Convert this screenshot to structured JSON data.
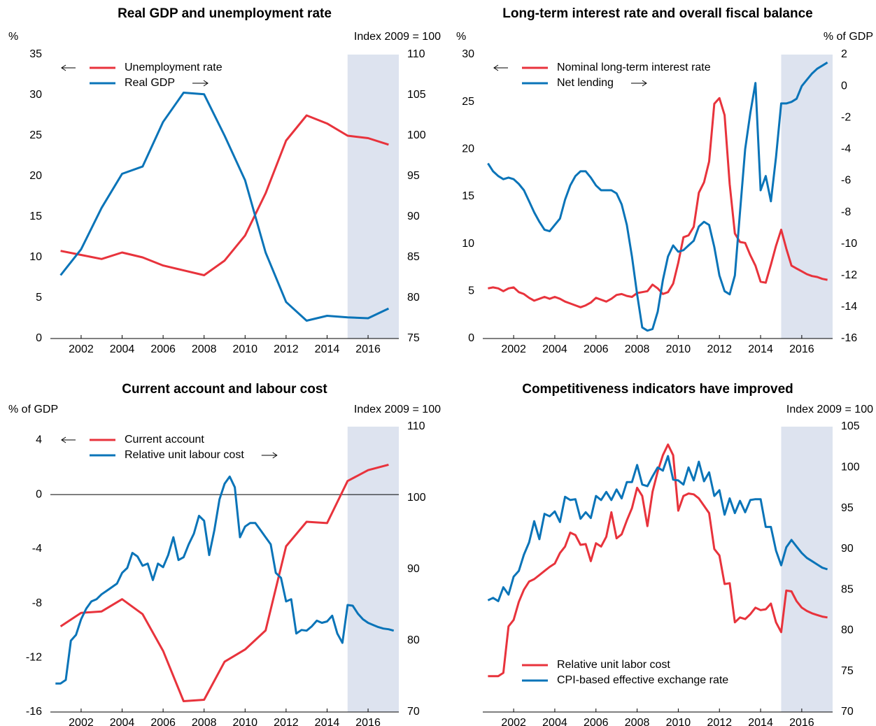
{
  "chart_data": [
    {
      "type": "line",
      "title": "Real GDP and unemployment rate",
      "y_label": "%",
      "y2_label": "Index 2009 = 100",
      "x": [
        2001,
        2002,
        2003,
        2004,
        2005,
        2006,
        2007,
        2008,
        2009,
        2010,
        2011,
        2012,
        2013,
        2014,
        2015,
        2016,
        2017
      ],
      "xlim": [
        2000.5,
        2017.5
      ],
      "xticks": [
        2002,
        2004,
        2006,
        2008,
        2010,
        2012,
        2014,
        2016
      ],
      "ylim": [
        0,
        35
      ],
      "yticks": [
        0,
        5,
        10,
        15,
        20,
        25,
        30,
        35
      ],
      "y2lim": [
        75,
        110
      ],
      "y2ticks": [
        75,
        80,
        85,
        90,
        95,
        100,
        105,
        110
      ],
      "shade_from": 2015,
      "legend": "upper left",
      "series": [
        {
          "name": "Unemployment rate",
          "color": "#e8333c",
          "axis": "y",
          "values": [
            10.8,
            10.3,
            9.8,
            10.6,
            10.0,
            9.0,
            8.4,
            7.8,
            9.6,
            12.7,
            17.9,
            24.4,
            27.5,
            26.5,
            25.0,
            24.7,
            23.9
          ]
        },
        {
          "name": "Real GDP",
          "color": "#0a74b8",
          "axis": "y2",
          "values": [
            82.8,
            86.0,
            91.1,
            95.3,
            96.2,
            101.7,
            105.3,
            105.1,
            100.0,
            94.5,
            85.6,
            79.5,
            77.2,
            77.8,
            77.6,
            77.5,
            78.7
          ]
        }
      ]
    },
    {
      "type": "line",
      "title": "Long-term interest rate and overall fiscal balance",
      "y_label": "%",
      "y2_label": "% of GDP",
      "x": [
        2000.75,
        2001,
        2001.25,
        2001.5,
        2001.75,
        2002,
        2002.25,
        2002.5,
        2002.75,
        2003,
        2003.25,
        2003.5,
        2003.75,
        2004,
        2004.25,
        2004.5,
        2004.75,
        2005,
        2005.25,
        2005.5,
        2005.75,
        2006,
        2006.25,
        2006.5,
        2006.75,
        2007,
        2007.25,
        2007.5,
        2007.75,
        2008,
        2008.25,
        2008.5,
        2008.75,
        2009,
        2009.25,
        2009.5,
        2009.75,
        2010,
        2010.25,
        2010.5,
        2010.75,
        2011,
        2011.25,
        2011.5,
        2011.75,
        2012,
        2012.25,
        2012.5,
        2012.75,
        2013,
        2013.25,
        2013.5,
        2013.75,
        2014,
        2014.25,
        2014.5,
        2014.75,
        2015,
        2015.25,
        2015.5,
        2015.75,
        2016,
        2016.25,
        2016.5,
        2016.75,
        2017,
        2017.25
      ],
      "xlim": [
        2000.5,
        2017.5
      ],
      "xticks": [
        2002,
        2004,
        2006,
        2008,
        2010,
        2012,
        2014,
        2016
      ],
      "ylim": [
        0,
        30
      ],
      "yticks": [
        0,
        5,
        10,
        15,
        20,
        25,
        30
      ],
      "y2lim": [
        -16,
        2
      ],
      "y2ticks": [
        -16,
        -14,
        -12,
        -10,
        -8,
        -6,
        -4,
        -2,
        0,
        2
      ],
      "shade_from": 2015,
      "legend": "upper left",
      "series": [
        {
          "name": "Nominal long-term interest rate",
          "color": "#e8333c",
          "axis": "y",
          "values": [
            5.3,
            5.4,
            5.3,
            5.0,
            5.3,
            5.4,
            4.9,
            4.7,
            4.3,
            4.0,
            4.2,
            4.4,
            4.2,
            4.4,
            4.2,
            3.9,
            3.7,
            3.5,
            3.3,
            3.5,
            3.8,
            4.3,
            4.1,
            3.9,
            4.2,
            4.6,
            4.7,
            4.5,
            4.4,
            4.8,
            4.9,
            5.0,
            5.7,
            5.3,
            4.7,
            4.9,
            5.8,
            8.0,
            10.7,
            10.9,
            11.8,
            15.4,
            16.5,
            18.7,
            24.8,
            25.4,
            23.6,
            16.3,
            11.1,
            10.2,
            10.1,
            8.8,
            7.7,
            6.0,
            5.9,
            7.8,
            9.8,
            11.5,
            9.5,
            7.7,
            7.4,
            7.1,
            6.8,
            6.6,
            6.5,
            6.3,
            6.2
          ]
        },
        {
          "name": "Net lending",
          "color": "#0a74b8",
          "axis": "y2",
          "values": [
            -4.9,
            -5.4,
            -5.7,
            -5.9,
            -5.8,
            -5.9,
            -6.2,
            -6.6,
            -7.3,
            -8.0,
            -8.6,
            -9.1,
            -9.2,
            -8.8,
            -8.4,
            -7.2,
            -6.3,
            -5.7,
            -5.4,
            -5.4,
            -5.8,
            -6.3,
            -6.6,
            -6.6,
            -6.6,
            -6.8,
            -7.5,
            -8.8,
            -10.8,
            -13.2,
            -15.3,
            -15.5,
            -15.4,
            -14.3,
            -12.3,
            -10.8,
            -10.1,
            -10.5,
            -10.4,
            -10.1,
            -9.8,
            -8.9,
            -8.6,
            -8.8,
            -10.2,
            -12.0,
            -13.0,
            -13.2,
            -12.0,
            -8.0,
            -4.0,
            -1.7,
            0.2,
            -6.6,
            -5.7,
            -7.3,
            -4.5,
            -1.1,
            -1.1,
            -1.0,
            -0.8,
            0.0,
            0.4,
            0.8,
            1.1,
            1.3,
            1.5
          ]
        }
      ]
    },
    {
      "type": "line",
      "title": "Current account and labour cost",
      "y_label": "% of GDP",
      "y2_label": "Index 2009 = 100",
      "x": [
        2000.75,
        2001,
        2001.25,
        2001.5,
        2001.75,
        2002,
        2002.25,
        2002.5,
        2002.75,
        2003,
        2003.25,
        2003.5,
        2003.75,
        2004,
        2004.25,
        2004.5,
        2004.75,
        2005,
        2005.25,
        2005.5,
        2005.75,
        2006,
        2006.25,
        2006.5,
        2006.75,
        2007,
        2007.25,
        2007.5,
        2007.75,
        2008,
        2008.25,
        2008.5,
        2008.75,
        2009,
        2009.25,
        2009.5,
        2009.75,
        2010,
        2010.25,
        2010.5,
        2010.75,
        2011,
        2011.25,
        2011.5,
        2011.75,
        2012,
        2012.25,
        2012.5,
        2012.75,
        2013,
        2013.25,
        2013.5,
        2013.75,
        2014,
        2014.25,
        2014.5,
        2014.75,
        2015,
        2015.25,
        2015.5,
        2015.75,
        2016,
        2016.25,
        2016.5,
        2016.75,
        2017,
        2017.25
      ],
      "xlim": [
        2000.5,
        2017.5
      ],
      "xticks": [
        2002,
        2004,
        2006,
        2008,
        2010,
        2012,
        2014,
        2016
      ],
      "ylim": [
        -16,
        5
      ],
      "yticks": [
        -16,
        -12,
        -8,
        -4,
        0,
        4
      ],
      "y2lim": [
        70,
        110
      ],
      "y2ticks": [
        70,
        80,
        90,
        100,
        110
      ],
      "shade_from": 2015,
      "zero_line": true,
      "legend": "upper left",
      "series": [
        {
          "name": "Current account",
          "color": "#e8333c",
          "axis": "y",
          "x": [
            2001,
            2002,
            2003,
            2004,
            2005,
            2006,
            2007,
            2008,
            2009,
            2010,
            2011,
            2012,
            2013,
            2014,
            2015,
            2016,
            2017
          ],
          "values": [
            -9.7,
            -8.7,
            -8.6,
            -7.7,
            -8.8,
            -11.5,
            -15.2,
            -15.1,
            -12.3,
            -11.4,
            -10.0,
            -3.8,
            -2.0,
            -2.1,
            1.0,
            1.8,
            2.2
          ]
        },
        {
          "name": "Relative unit labour cost",
          "color": "#0a74b8",
          "axis": "y2",
          "values": [
            74.0,
            74.0,
            74.5,
            80.0,
            80.8,
            83.0,
            84.5,
            85.5,
            85.8,
            86.5,
            87.0,
            87.5,
            88.0,
            89.5,
            90.2,
            92.3,
            91.8,
            90.5,
            90.8,
            88.5,
            90.8,
            90.3,
            92.0,
            94.5,
            91.3,
            91.7,
            93.5,
            95.0,
            97.5,
            96.8,
            92.0,
            95.5,
            99.8,
            102.0,
            103.0,
            101.5,
            94.5,
            96.0,
            96.5,
            96.5,
            95.5,
            94.5,
            93.5,
            89.5,
            88.8,
            85.5,
            85.8,
            81.0,
            81.5,
            81.4,
            82.0,
            82.8,
            82.5,
            82.7,
            83.5,
            81.0,
            79.7,
            85.0,
            84.9,
            83.8,
            83.0,
            82.5,
            82.2,
            81.9,
            81.7,
            81.6,
            81.4
          ]
        }
      ]
    },
    {
      "type": "line",
      "title": "Competitiveness indicators have improved",
      "y2_label": "Index 2009 = 100",
      "x": [
        2000.75,
        2001,
        2001.25,
        2001.5,
        2001.75,
        2002,
        2002.25,
        2002.5,
        2002.75,
        2003,
        2003.25,
        2003.5,
        2003.75,
        2004,
        2004.25,
        2004.5,
        2004.75,
        2005,
        2005.25,
        2005.5,
        2005.75,
        2006,
        2006.25,
        2006.5,
        2006.75,
        2007,
        2007.25,
        2007.5,
        2007.75,
        2008,
        2008.25,
        2008.5,
        2008.75,
        2009,
        2009.25,
        2009.5,
        2009.75,
        2010,
        2010.25,
        2010.5,
        2010.75,
        2011,
        2011.25,
        2011.5,
        2011.75,
        2012,
        2012.25,
        2012.5,
        2012.75,
        2013,
        2013.25,
        2013.5,
        2013.75,
        2014,
        2014.25,
        2014.5,
        2014.75,
        2015,
        2015.25,
        2015.5,
        2015.75,
        2016,
        2016.25,
        2016.5,
        2016.75,
        2017,
        2017.25
      ],
      "xlim": [
        2000.5,
        2017.5
      ],
      "xticks": [
        2002,
        2004,
        2006,
        2008,
        2010,
        2012,
        2014,
        2016
      ],
      "y2lim": [
        70,
        105
      ],
      "y2ticks": [
        70,
        75,
        80,
        85,
        90,
        95,
        100,
        105
      ],
      "shade_from": 2015,
      "legend": "lower left",
      "series": [
        {
          "name": "Relative unit labor cost",
          "color": "#e8333c",
          "axis": "y2",
          "values": [
            74.4,
            74.4,
            74.4,
            74.8,
            80.5,
            81.3,
            83.5,
            85.0,
            86.0,
            86.3,
            86.8,
            87.3,
            87.8,
            88.2,
            89.5,
            90.3,
            92.0,
            91.7,
            90.5,
            90.6,
            88.5,
            90.7,
            90.3,
            91.5,
            94.5,
            91.3,
            91.8,
            93.5,
            95.0,
            97.5,
            96.5,
            92.8,
            97.0,
            99.5,
            101.5,
            102.8,
            101.5,
            94.7,
            96.5,
            96.8,
            96.7,
            96.2,
            95.3,
            94.4,
            90.0,
            89.2,
            85.7,
            85.8,
            81.0,
            81.6,
            81.4,
            82.0,
            82.8,
            82.5,
            82.6,
            83.3,
            81.0,
            79.8,
            84.9,
            84.8,
            83.6,
            82.8,
            82.4,
            82.1,
            81.9,
            81.7,
            81.6
          ]
        },
        {
          "name": "CPI-based effective exchange rate",
          "color": "#0a74b8",
          "axis": "y2",
          "values": [
            83.7,
            84.0,
            83.6,
            85.3,
            84.4,
            86.6,
            87.3,
            89.3,
            90.8,
            93.4,
            91.2,
            94.3,
            94.0,
            94.6,
            93.3,
            96.4,
            96.0,
            96.1,
            93.7,
            94.5,
            93.8,
            96.5,
            96.0,
            97.0,
            96.0,
            97.3,
            96.2,
            98.2,
            98.2,
            100.3,
            97.9,
            97.7,
            98.9,
            100.0,
            99.6,
            101.4,
            98.5,
            98.4,
            97.9,
            100.0,
            98.4,
            100.7,
            98.3,
            99.4,
            96.5,
            97.2,
            94.2,
            96.2,
            94.4,
            95.9,
            94.5,
            96.0,
            96.1,
            96.1,
            92.7,
            92.7,
            89.8,
            88.0,
            90.2,
            91.1,
            90.3,
            89.5,
            88.9,
            88.5,
            88.1,
            87.7,
            87.5
          ]
        }
      ]
    }
  ]
}
